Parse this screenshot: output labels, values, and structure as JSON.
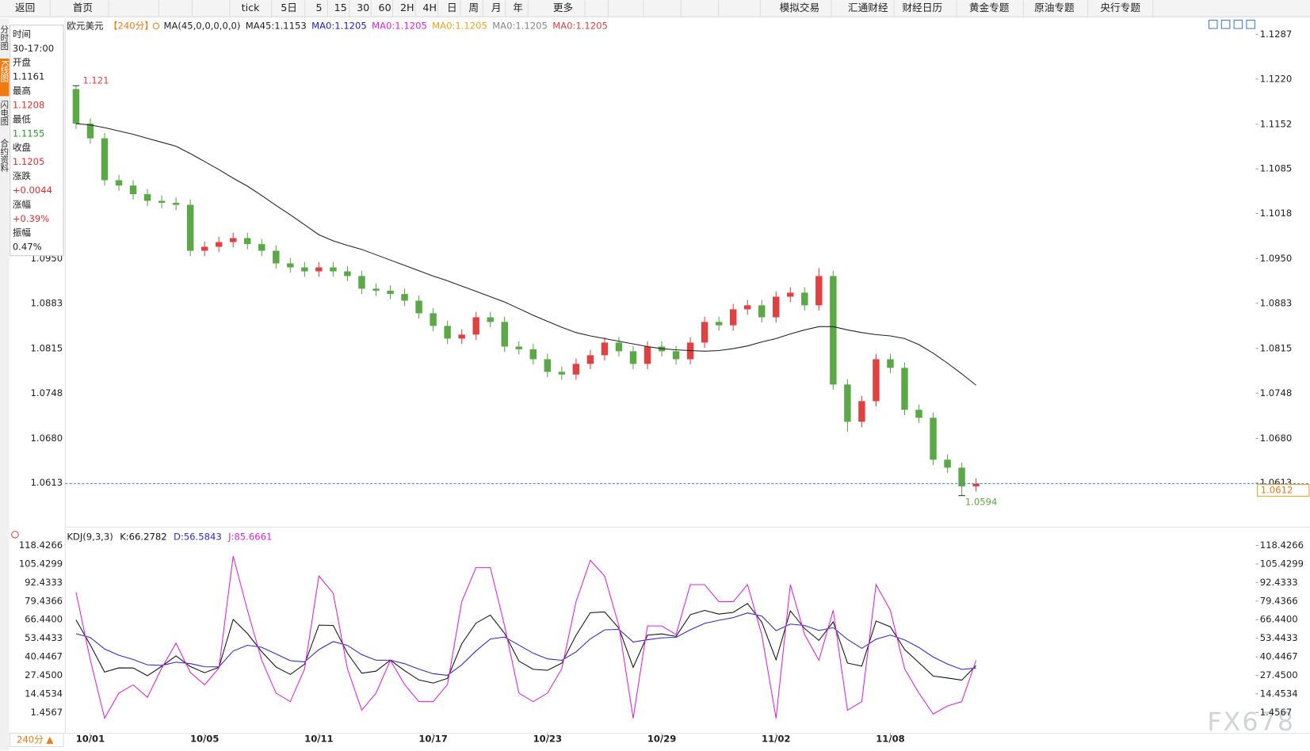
{
  "toolbar": [
    "返回",
    "首页",
    "tick",
    "5日",
    "5",
    "15",
    "30",
    "60",
    "2H",
    "4H",
    "日",
    "周",
    "月",
    "年",
    "更多",
    "模拟交易",
    "汇通财经",
    "财经日历",
    "黄金专题",
    "原油专题",
    "央行专题"
  ],
  "side_tabs": [
    "分时图",
    "K线图",
    "闪电图",
    "合约资料"
  ],
  "info_panel": [
    {
      "label": "时间",
      "value": "30-17:00"
    },
    {
      "label": "开盘",
      "value": "1.1161"
    },
    {
      "label": "最高",
      "value": "1.1208",
      "color": "#e03030"
    },
    {
      "label": "最低",
      "value": "1.1155",
      "color": "#2a9a2a"
    },
    {
      "label": "收盘",
      "value": "1.1205",
      "color": "#e03030"
    },
    {
      "label": "涨跌",
      "value": "+0.0044",
      "color": "#e03030"
    },
    {
      "label": "涨幅",
      "value": "+0.39%",
      "color": "#e03030"
    },
    {
      "label": "振幅",
      "value": "0.47%"
    }
  ],
  "period_selector": "240分 ▲",
  "watermark": "FX678",
  "chart_data": [
    {
      "type": "candlestick",
      "title": "欧元美元",
      "period": "【240分】",
      "indicator": "MA(45,0,0,0,0,0)",
      "indicator_labels": [
        {
          "text": "MA0:1.1205",
          "color": "#2020c8"
        },
        {
          "text": "MA0:1.1205",
          "color": "#e020e0"
        },
        {
          "text": "MA0:1.1205",
          "color": "#f0a020"
        },
        {
          "text": "MA0:1.1205",
          "color": "#888888"
        },
        {
          "text": "MA0:1.1205",
          "color": "#e04040"
        }
      ],
      "up_color": "#e04040",
      "down_color": "#5aa846",
      "open": [
        1.1205,
        1.1153,
        1.1131,
        1.1068,
        1.106,
        1.1047,
        1.1037,
        1.1034,
        1.1031,
        1.0962,
        1.0968,
        1.0975,
        1.0981,
        1.0972,
        1.0962,
        1.0943,
        1.0937,
        1.0931,
        1.0937,
        1.0931,
        1.0924,
        1.0905,
        1.0902,
        1.0897,
        1.0887,
        1.0868,
        1.0849,
        1.083,
        1.0836,
        1.0862,
        1.0855,
        1.0818,
        1.0814,
        1.0799,
        1.078,
        1.0776,
        1.0792,
        1.0805,
        1.0824,
        1.0811,
        1.0792,
        1.0818,
        1.0811,
        1.0799,
        1.0824,
        1.0855,
        1.085,
        1.0874,
        1.088,
        1.0862,
        1.0893,
        1.0899,
        1.088,
        1.0924,
        1.0761,
        1.0705,
        1.0736,
        1.0799,
        1.0786,
        1.0723,
        1.0711,
        1.0648,
        1.0636,
        1.0608
      ],
      "high": [
        1.121,
        1.1161,
        1.1139,
        1.1076,
        1.1068,
        1.1055,
        1.1045,
        1.1042,
        1.1039,
        1.0976,
        1.0983,
        1.0989,
        1.0989,
        1.098,
        1.097,
        1.0951,
        1.0945,
        1.0945,
        1.0945,
        1.0939,
        1.0932,
        1.0913,
        1.091,
        1.0905,
        1.0895,
        1.0876,
        1.0857,
        1.0844,
        1.087,
        1.087,
        1.0863,
        1.0826,
        1.0822,
        1.0807,
        1.0788,
        1.08,
        1.0813,
        1.0832,
        1.0832,
        1.0819,
        1.0826,
        1.0826,
        1.0819,
        1.0832,
        1.0863,
        1.0863,
        1.0882,
        1.0888,
        1.0888,
        1.0901,
        1.0907,
        1.0907,
        1.0936,
        1.0932,
        1.0769,
        1.0744,
        1.0807,
        1.0807,
        1.0794,
        1.0731,
        1.0719,
        1.0656,
        1.0644,
        1.062
      ],
      "low": [
        1.1145,
        1.1123,
        1.106,
        1.1052,
        1.1039,
        1.1029,
        1.1026,
        1.1023,
        1.0954,
        1.0954,
        1.096,
        1.0967,
        1.0964,
        1.0954,
        1.0935,
        1.0929,
        1.0923,
        1.0923,
        1.0923,
        1.0916,
        1.0897,
        1.0894,
        1.0889,
        1.0879,
        1.086,
        1.0841,
        1.0822,
        1.0822,
        1.0828,
        1.0847,
        1.081,
        1.0806,
        1.0791,
        1.0772,
        1.0768,
        1.0768,
        1.0784,
        1.0797,
        1.0803,
        1.0784,
        1.0784,
        1.0803,
        1.0791,
        1.0791,
        1.0816,
        1.0842,
        1.0842,
        1.0866,
        1.0854,
        1.0854,
        1.0885,
        1.0872,
        1.0872,
        1.0753,
        1.069,
        1.0697,
        1.0728,
        1.0778,
        1.0715,
        1.0703,
        1.064,
        1.0628,
        1.0594,
        1.06
      ],
      "close": [
        1.1153,
        1.1131,
        1.1068,
        1.106,
        1.1047,
        1.1037,
        1.1034,
        1.1031,
        1.0962,
        1.0968,
        1.0975,
        1.0981,
        1.0972,
        1.0962,
        1.0943,
        1.0937,
        1.0931,
        1.0937,
        1.0931,
        1.0924,
        1.0905,
        1.0902,
        1.0897,
        1.0887,
        1.0868,
        1.0849,
        1.083,
        1.0836,
        1.0862,
        1.0855,
        1.0818,
        1.0814,
        1.0799,
        1.078,
        1.0776,
        1.0792,
        1.0805,
        1.0824,
        1.0811,
        1.0792,
        1.0818,
        1.0811,
        1.0799,
        1.0824,
        1.0855,
        1.085,
        1.0874,
        1.088,
        1.0862,
        1.0893,
        1.0899,
        1.088,
        1.0924,
        1.0761,
        1.0705,
        1.0736,
        1.0799,
        1.0786,
        1.0723,
        1.0711,
        1.0648,
        1.0636,
        1.0608,
        1.0612
      ],
      "series": [
        {
          "name": "MA45:1.1153",
          "color": "#222222",
          "values": [
            1.1153,
            1.1151,
            1.1147,
            1.1142,
            1.1137,
            1.1131,
            1.1125,
            1.1119,
            1.1108,
            1.1096,
            1.1084,
            1.1071,
            1.1059,
            1.1045,
            1.103,
            1.1016,
            1.1001,
            1.0986,
            1.0977,
            1.097,
            1.0964,
            1.0956,
            1.0948,
            1.094,
            1.0932,
            1.0924,
            1.0917,
            1.0909,
            1.0901,
            1.0893,
            1.0885,
            1.0875,
            1.0865,
            1.0856,
            1.0847,
            1.0839,
            1.0834,
            1.083,
            1.0826,
            1.0822,
            1.0818,
            1.0815,
            1.0813,
            1.0812,
            1.0811,
            1.0812,
            1.0815,
            1.0819,
            1.0825,
            1.083,
            1.0837,
            1.0843,
            1.0848,
            1.0848,
            1.0843,
            1.0839,
            1.0836,
            1.0834,
            1.083,
            1.0821,
            1.0808,
            1.0793,
            1.0777,
            1.076
          ]
        }
      ],
      "ylim": [
        1.0548,
        1.1301
      ],
      "yticks": [
        1.1287,
        {
          "value": 1.122,
          "label": "1.1220"
        },
        1.1152,
        1.1085,
        1.1018,
        {
          "value": 1.095,
          "label": "1.0950"
        },
        1.0883,
        1.0815,
        1.0748,
        {
          "value": 1.068,
          "label": "1.0680"
        },
        1.0613
      ],
      "grid": false
    },
    {
      "type": "line",
      "title": "KDJ(9,3,3)",
      "categories": [
        null,
        "10/01",
        null,
        null,
        null,
        null,
        null,
        null,
        null,
        "10/05",
        null,
        null,
        null,
        null,
        null,
        null,
        null,
        "10/11",
        null,
        null,
        null,
        null,
        null,
        null,
        null,
        "10/17",
        null,
        null,
        null,
        null,
        null,
        null,
        null,
        "10/23",
        null,
        null,
        null,
        null,
        null,
        null,
        null,
        "10/29",
        null,
        null,
        null,
        null,
        null,
        null,
        null,
        "11/02",
        null,
        null,
        null,
        null,
        null,
        null,
        null,
        "11/08",
        null,
        null,
        null,
        null,
        null,
        null
      ],
      "series": [
        {
          "name": "K:66.2782",
          "color": "#111111",
          "values": [
            66.2782,
            48.75,
            29.73,
            32.65,
            32.62,
            27.16,
            33.78,
            41.1,
            33.59,
            29.27,
            33.08,
            66.64,
            56.69,
            44.02,
            33.3,
            28.11,
            35.24,
            62.63,
            62.4,
            42.91,
            28.93,
            30.37,
            38.03,
            30.74,
            24.21,
            22.03,
            25.31,
            49.55,
            64.05,
            69.61,
            56.81,
            37.41,
            31.64,
            30.98,
            35.98,
            55.55,
            71.33,
            71.86,
            60.45,
            32.99,
            55.59,
            56.5,
            54.71,
            69.9,
            72.91,
            70.35,
            71.59,
            77.79,
            64.67,
            38.32,
            72.59,
            60.22,
            51.9,
            64.91,
            36.07,
            33.91,
            65.5,
            61.43,
            45.51,
            36.29,
            26.95,
            25.59,
            24.07,
            34.35
          ]
        },
        {
          "name": "D:56.5843",
          "color": "#2a2ad0",
          "values": [
            56.5843,
            53.97,
            45.89,
            41.48,
            38.53,
            34.74,
            34.42,
            36.65,
            35.63,
            33.51,
            33.37,
            44.46,
            48.54,
            47.03,
            42.45,
            37.67,
            36.86,
            45.45,
            51.1,
            48.37,
            41.89,
            38.05,
            38.04,
            35.61,
            31.81,
            28.55,
            27.47,
            34.83,
            44.57,
            52.92,
            54.22,
            48.62,
            42.96,
            38.97,
            37.97,
            43.83,
            53.0,
            59.29,
            59.68,
            50.78,
            52.38,
            53.75,
            54.07,
            59.35,
            63.87,
            66.03,
            67.88,
            71.18,
            69.01,
            58.78,
            63.38,
            62.33,
            58.85,
            60.87,
            52.6,
            46.37,
            52.75,
            55.64,
            52.26,
            46.94,
            40.28,
            35.38,
            31.61,
            32.52
          ]
        },
        {
          "name": "J:85.6661",
          "color": "#e020e0",
          "values": [
            85.6661,
            38.3,
            -2.6,
            15,
            20.8,
            12,
            32.5,
            50,
            29.5,
            20.8,
            32.5,
            111,
            73,
            38,
            15,
            9,
            32,
            97,
            85,
            32,
            3,
            15,
            38,
            21,
            9,
            9,
            21,
            79,
            103,
            103,
            62,
            15,
            9,
            15,
            32,
            79,
            108,
            97,
            62,
            -2.6,
            62,
            62,
            56,
            91,
            91,
            79,
            79,
            91,
            56,
            -2.6,
            91,
            56,
            38,
            73,
            3,
            9,
            91,
            73,
            32,
            15,
            0.3,
            6,
            9,
            38
          ]
        }
      ],
      "ylim": [
        -13.2,
        123.1
      ],
      "yticks": [
        118.4266,
        105.4299,
        92.4333,
        79.4366,
        {
          "value": 66.44,
          "label": "66.4400"
        },
        53.4433,
        40.4467,
        {
          "value": 27.45,
          "label": "27.4500"
        },
        14.4534,
        1.4567
      ],
      "grid": false
    }
  ]
}
